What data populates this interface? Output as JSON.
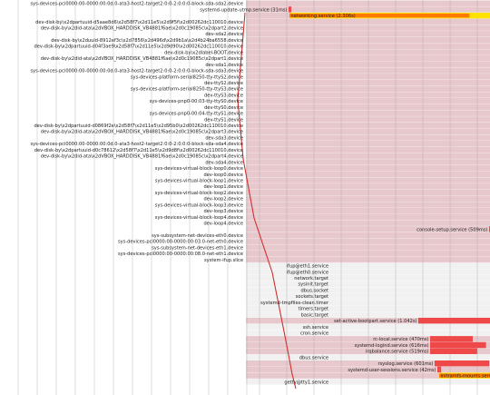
{
  "colors": {
    "background": "#ffffff",
    "active_band": "#e7c8cc",
    "inactive_band": "#f1f1f1",
    "grid": "#a8a8a8",
    "bar": "#ef4848",
    "bar_highlight": "#ffe200",
    "bar_highlight_inner": "#ff7a00",
    "critical_chain": "#d03030"
  },
  "rows": [
    {
      "label": "sys-devices-pci0000:00-0000:00:0d.0-ata3-host2-target2:0:0-2:0:0:0-block-sda-sda2.device"
    },
    {
      "label": "systemd-update-utmp.service (31ms)",
      "start": 0.32,
      "dur": 0.031,
      "state": "bar"
    },
    {
      "label": "networking.service (2.306s)",
      "start": 0.33,
      "dur": 2.306,
      "state": "highlight"
    },
    {
      "label": "dev-disk-by\\x2dpartuuid-d5aae8d6\\x2d58f7\\x2d11e5\\x2d9f5f\\x2d00262dc110010.device"
    },
    {
      "label": "dev-disk-by\\x2did-ata\\x2dVBOX_HARDDISK_VB4881f6ae\\x2d0c19085c\\x2dpart2.device"
    },
    {
      "label": "dev-sda2.device"
    },
    {
      "label": "dev-disk-by\\x2duuid-8912ef3c\\x2d7856\\x2d496d\\x2d9b1a\\x2d4b24ba6558.device"
    },
    {
      "label": "dev-disk-by\\x2dpartuuid-d04f3ae9\\x2d58f7\\x2d11e5\\x2d9d90\\x2d00262dc110010.device"
    },
    {
      "label": "dev-disk-by\\x2dlabel-BOOT.device"
    },
    {
      "label": "dev-disk-by\\x2did-ata\\x2dVBOX_HARDDISK_VB4881f6ae\\x2d0c19085c\\x2dpart1.device"
    },
    {
      "label": "dev-sda1.device"
    },
    {
      "label": "sys-devices-pci0000:00-0000:00:0d.0-ata3-host2-target2:0:0-2:0:0:0-block-sda-sda3.device"
    },
    {
      "label": "sys-devices-platform-serial8250-tty-ttyS2.device"
    },
    {
      "label": "dev-ttyS2.device"
    },
    {
      "label": "sys-devices-platform-serial8250-tty-ttyS3.device"
    },
    {
      "label": "dev-ttyS3.device"
    },
    {
      "label": "sys-devices-pnp0-00:03-tty-ttyS0.device"
    },
    {
      "label": "dev-ttyS0.device"
    },
    {
      "label": "sys-devices-pnp0-00:04-tty-ttyS1.device"
    },
    {
      "label": "dev-ttyS1.device"
    },
    {
      "label": "dev-disk-by\\x2dpartuuid-d0869f2e\\x2d58f7\\x2d11e5\\x2d95b0\\x2d00262dc110010.device"
    },
    {
      "label": "dev-disk-by\\x2did-ata\\x2dVBOX_HARDDISK_VB4881f6ae\\x2d0c19085c\\x2dpart3.device"
    },
    {
      "label": "dev-sda3.device"
    },
    {
      "label": "sys-devices-pci0000:00-0000:00:0d.0-ata3-host2-target2:0:0-2:0:0:0-block-sda-sda4.device"
    },
    {
      "label": "dev-disk-by\\x2dpartuuid-d0c78612\\x2d58f7\\x2d11e5\\x2d9d8f\\x2d00262dc110010.device"
    },
    {
      "label": "dev-disk-by\\x2did-ata\\x2dVBOX_HARDDISK_VB4881f6ae\\x2d0c19085c\\x2dpart4.device"
    },
    {
      "label": "dev-sda4.device"
    },
    {
      "label": "sys-devices-virtual-block-loop0.device"
    },
    {
      "label": "dev-loop0.device"
    },
    {
      "label": "sys-devices-virtual-block-loop1.device"
    },
    {
      "label": "dev-loop1.device"
    },
    {
      "label": "sys-devices-virtual-block-loop2.device"
    },
    {
      "label": "dev-loop2.device"
    },
    {
      "label": "sys-devices-virtual-block-loop3.device"
    },
    {
      "label": "dev-loop3.device"
    },
    {
      "label": "sys-devices-virtual-block-loop4.device"
    },
    {
      "label": "dev-loop4.device"
    },
    {
      "label": "console-setup.service (509ms)",
      "start": 2.53,
      "dur": 0.509,
      "state": "bar"
    },
    {
      "label": "sys-subsystem-net-devices-eth0.device"
    },
    {
      "label": "sys-devices-pci0000:00-0000:00:03.0-net-eth0.device"
    },
    {
      "label": "sys-subsystem-net-devices-eth1.device"
    },
    {
      "label": "sys-devices-pci0000:00-0000:00:08.0-net-eth1.device"
    },
    {
      "label": "system-ifup.slice"
    },
    {
      "label": "ifup@eth1.service",
      "state": "inactive"
    },
    {
      "label": "ifup@eth0.service",
      "state": "inactive"
    },
    {
      "label": "network.target",
      "state": "inactive"
    },
    {
      "label": "sysinit.target",
      "state": "inactive"
    },
    {
      "label": "dbus.socket",
      "state": "inactive"
    },
    {
      "label": "sockets.target",
      "state": "inactive"
    },
    {
      "label": "systemd-tmpfiles-clean.timer",
      "state": "inactive"
    },
    {
      "label": "timers.target",
      "state": "inactive"
    },
    {
      "label": "basic.target",
      "state": "inactive"
    },
    {
      "label": "set-active-bootpart.service (1.042s)",
      "start": 1.75,
      "dur": 1.042,
      "state": "bar"
    },
    {
      "label": "ssh.service",
      "state": "inactive"
    },
    {
      "label": "cron.service",
      "state": "inactive"
    },
    {
      "label": "rc-local.service (470ms)",
      "start": 1.88,
      "dur": 0.47,
      "state": "bar"
    },
    {
      "label": "systemd-logind.service (616ms)",
      "start": 1.88,
      "dur": 0.616,
      "state": "bar"
    },
    {
      "label": "irqbalance.service (519ms)",
      "start": 1.88,
      "dur": 0.519,
      "state": "bar"
    },
    {
      "label": "dbus.service",
      "state": "inactive"
    },
    {
      "label": "rsyslog.service (601ms)",
      "start": 1.93,
      "dur": 0.601,
      "state": "bar"
    },
    {
      "label": "systemd-user-sessions.service (42ms)",
      "start": 1.96,
      "dur": 0.042,
      "state": "bar"
    },
    {
      "label": "initramfs-mounts.service (2.515s)",
      "start": 1.98,
      "dur": 2.515,
      "state": "highlight"
    },
    {
      "label": "getty@tty1.service",
      "state": "inactive"
    }
  ]
}
